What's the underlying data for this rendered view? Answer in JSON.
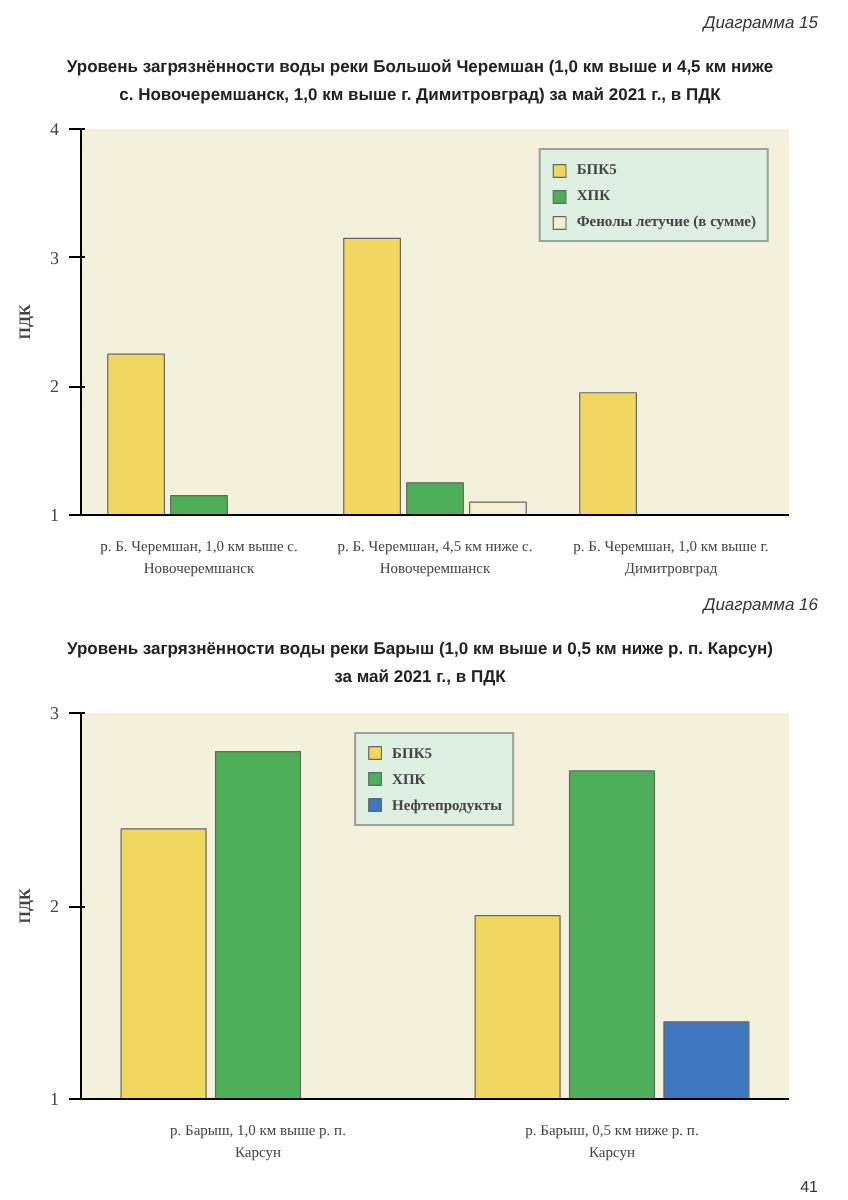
{
  "chart_data": [
    {
      "type": "bar",
      "title": "Уровень загрязнённости воды реки Большой Черемшан (1,0 км выше и 4,5 км ниже с. Новочеремшанск, 1,0 км выше г. Димитровград) за май 2021 г., в ПДК",
      "ylabel": "ПДК",
      "annotations": [
        "Диаграмма 15"
      ],
      "categories": [
        "р. Б. Черемшан, 1,0 км выше с. Новочеремшанск",
        "р. Б. Черемшан, 4,5 км ниже с. Новочеремшанск",
        "р. Б. Черемшан, 1,0 км выше г. Димитровград"
      ],
      "series": [
        {
          "name": "БПК5",
          "color": "#f0d860",
          "values": [
            2.25,
            3.15,
            1.95
          ]
        },
        {
          "name": "ХПК",
          "color": "#4fae5a",
          "values": [
            1.15,
            1.25,
            null
          ]
        },
        {
          "name": "Фенолы летучие (в сумме)",
          "color": "#f4efd2",
          "values": [
            null,
            1.1,
            null
          ]
        }
      ],
      "ylim": [
        1,
        4
      ],
      "yticks": [
        1,
        2,
        3,
        4
      ],
      "legend": "top right"
    },
    {
      "type": "bar",
      "title": "Уровень загрязнённости воды реки Барыш (1,0 км выше и 0,5 км ниже р. п. Карсун) за май 2021 г., в ПДК",
      "ylabel": "ПДК",
      "annotations": [
        "Диаграмма 16",
        "41"
      ],
      "categories": [
        "р. Барыш, 1,0 км выше р. п. Карсун",
        "р. Барыш, 0,5 км ниже р. п. Карсун"
      ],
      "series": [
        {
          "name": "БПК5",
          "color": "#f0d860",
          "values": [
            2.4,
            1.95
          ]
        },
        {
          "name": "ХПК",
          "color": "#4fae5a",
          "values": [
            2.8,
            2.7
          ]
        },
        {
          "name": "Нефтепродукты",
          "color": "#3f78c0",
          "values": [
            null,
            1.4
          ]
        }
      ],
      "ylim": [
        1,
        3
      ],
      "yticks": [
        1,
        2,
        3
      ],
      "legend": "top"
    }
  ]
}
